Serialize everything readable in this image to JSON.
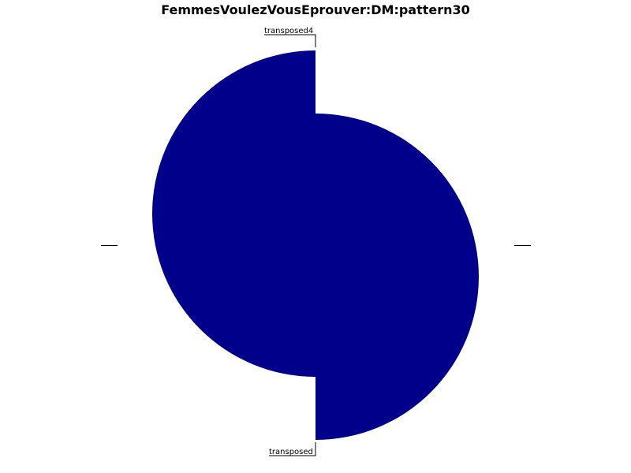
{
  "chart_data": {
    "type": "pie",
    "title": "FemmesVoulezVousEprouver:DM:pattern30",
    "labels": [
      "transposed4",
      "transposed"
    ],
    "values": [
      1,
      1
    ],
    "explode": true,
    "slice_color": "#00008B",
    "legend": "none"
  }
}
